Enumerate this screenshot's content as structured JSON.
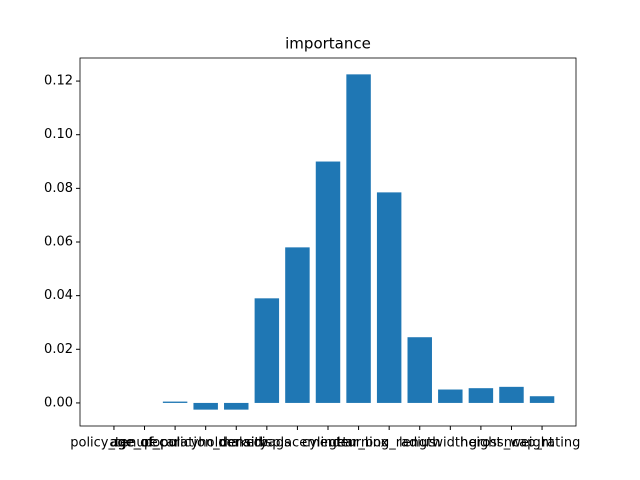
{
  "chart_data": {
    "type": "bar",
    "title": "importance",
    "categories": [
      "policy_tenure",
      "age_of_car",
      "age_of_policyholder",
      "population_density",
      "make",
      "airbags",
      "displacement",
      "cylinder",
      "gear_box",
      "turning_radius",
      "length",
      "width",
      "height",
      "gross_weight",
      "ncap_rating"
    ],
    "values": [
      0,
      0,
      0.0005,
      -0.0025,
      -0.0025,
      0.039,
      0.058,
      0.09,
      0.1225,
      0.0785,
      0.0245,
      0.005,
      0.0055,
      0.006,
      0.0025
    ],
    "color": "#1f77b4",
    "ylim": [
      -0.0086,
      0.1286
    ],
    "yticks": [
      {
        "value": 0,
        "label": "0.00"
      },
      {
        "value": 0.02,
        "label": "0.02"
      },
      {
        "value": 0.04,
        "label": "0.04"
      },
      {
        "value": 0.06,
        "label": "0.06"
      },
      {
        "value": 0.08,
        "label": "0.08"
      },
      {
        "value": 0.1,
        "label": "0.10"
      },
      {
        "value": 0.12,
        "label": "0.12"
      }
    ],
    "grid": false
  }
}
